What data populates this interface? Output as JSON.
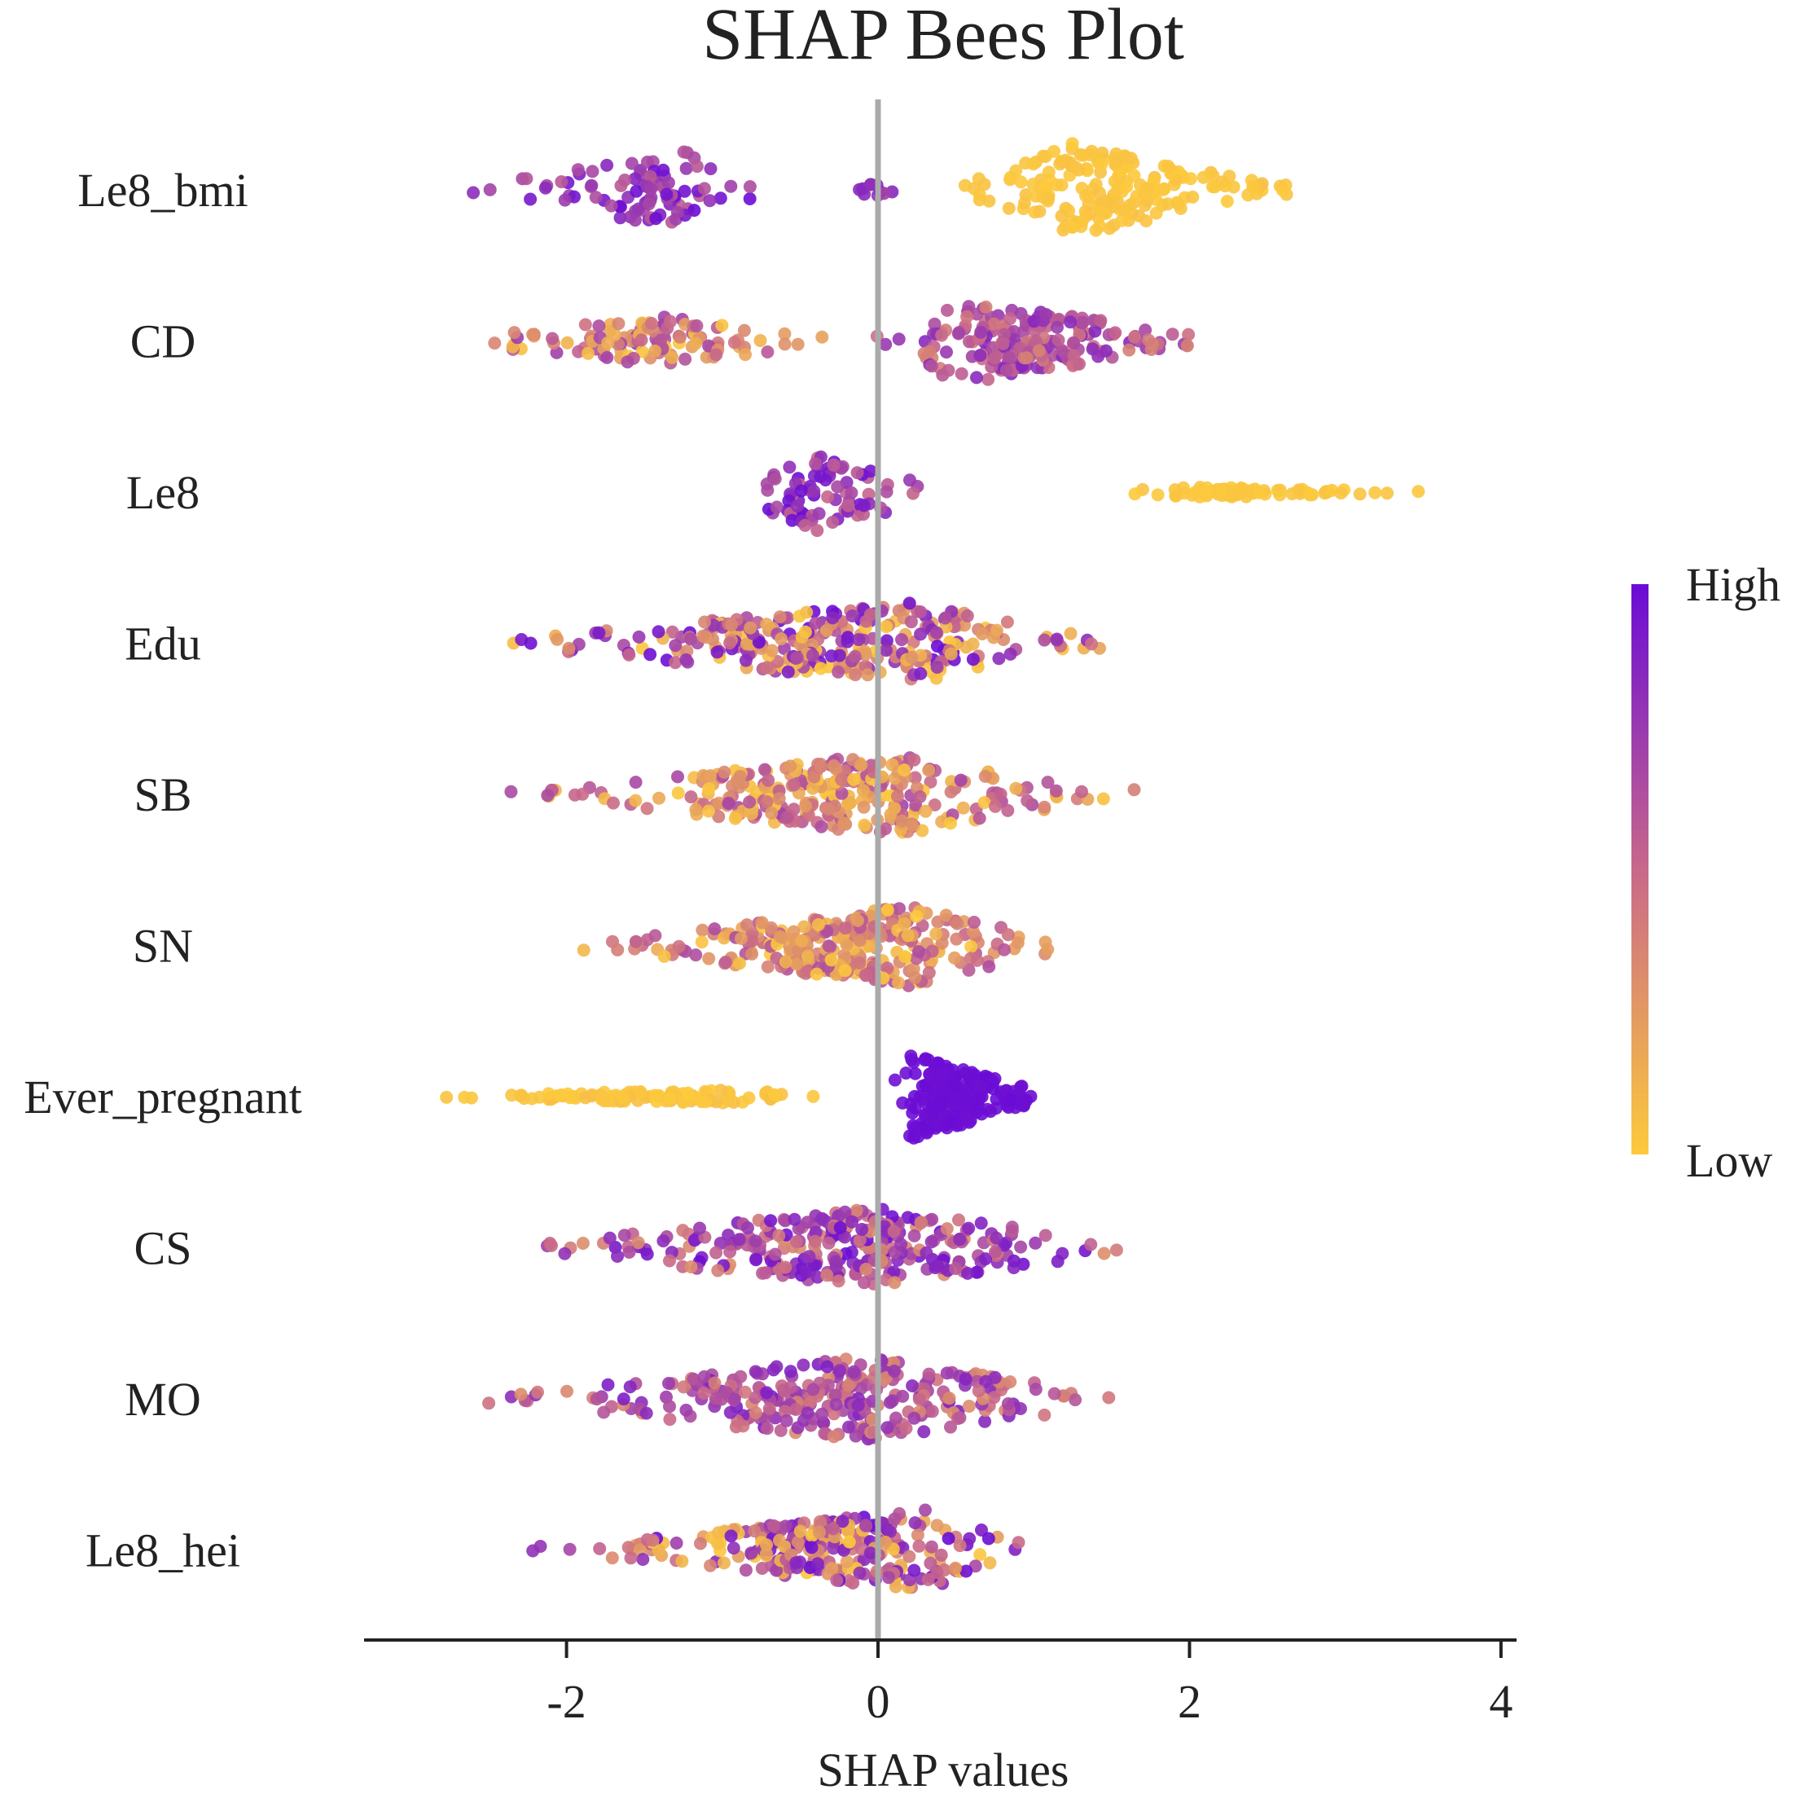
{
  "chart_data": {
    "type": "scatter",
    "subtype": "shap-beeswarm",
    "title": "SHAP Bees Plot",
    "xlabel": "SHAP values",
    "ylabel": "",
    "xlim": [
      -3.3,
      4.1
    ],
    "xticks": [
      -2,
      0,
      2,
      4
    ],
    "xtick_labels": [
      "-2",
      "0",
      "2",
      "4"
    ],
    "zero_line": 0,
    "colorbar": {
      "high_label": "High",
      "low_label": "Low",
      "high_color": "#6a0bd6",
      "mid_color": "#c8688a",
      "low_color": "#fdca3c"
    },
    "features": [
      {
        "name": "Le8_bmi",
        "clusters": [
          {
            "range": [
              -2.7,
              -0.6
            ],
            "peak": -1.25,
            "n": 90,
            "amp": 0.32,
            "color": [
              0.55,
              1.0
            ]
          },
          {
            "range": [
              -0.4,
              0.3
            ],
            "peak": 0.0,
            "n": 10,
            "amp": 0.05,
            "color": [
              0.7,
              0.95
            ]
          },
          {
            "range": [
              0.45,
              2.7
            ],
            "peak": 1.25,
            "n": 190,
            "amp": 0.38,
            "color": [
              0.0,
              0.05
            ]
          }
        ]
      },
      {
        "name": "CD",
        "clusters": [
          {
            "range": [
              -2.9,
              -0.1
            ],
            "peak": -1.4,
            "n": 110,
            "amp": 0.2,
            "color": [
              0.02,
              0.75
            ]
          },
          {
            "range": [
              -0.1,
              2.25
            ],
            "peak": 0.5,
            "n": 210,
            "amp": 0.36,
            "color": [
              0.35,
              0.85
            ]
          }
        ]
      },
      {
        "name": "Le8",
        "clusters": [
          {
            "range": [
              -1.05,
              0.55
            ],
            "peak": -0.4,
            "n": 80,
            "amp": 0.32,
            "color": [
              0.5,
              1.0
            ]
          },
          {
            "range": [
              1.1,
              3.8
            ],
            "peak": 2.1,
            "n": 75,
            "amp": 0.045,
            "color": [
              0.0,
              0.04
            ]
          }
        ]
      },
      {
        "name": "Edu",
        "clusters": [
          {
            "range": [
              -2.7,
              1.6
            ],
            "peak": 0.2,
            "n": 300,
            "amp": 0.33,
            "color": [
              0.0,
              1.0
            ]
          }
        ]
      },
      {
        "name": "SB",
        "clusters": [
          {
            "range": [
              -2.4,
              1.7
            ],
            "peak": 0.1,
            "n": 300,
            "amp": 0.34,
            "color": [
              0.0,
              0.7
            ]
          }
        ]
      },
      {
        "name": "SN",
        "clusters": [
          {
            "range": [
              -2.0,
              1.35
            ],
            "peak": 0.2,
            "n": 300,
            "amp": 0.33,
            "color": [
              0.0,
              0.65
            ]
          }
        ]
      },
      {
        "name": "Ever_pregnant",
        "clusters": [
          {
            "range": [
              -3.0,
              -0.15
            ],
            "peak": -0.9,
            "n": 110,
            "amp": 0.06,
            "color": [
              0.0,
              0.06
            ]
          },
          {
            "range": [
              0.05,
              1.15
            ],
            "peak": 0.2,
            "n": 210,
            "amp": 0.36,
            "color": [
              0.97,
              1.0
            ]
          }
        ]
      },
      {
        "name": "CS",
        "clusters": [
          {
            "range": [
              -2.4,
              1.85
            ],
            "peak": 0.0,
            "n": 300,
            "amp": 0.33,
            "color": [
              0.3,
              1.0
            ]
          }
        ]
      },
      {
        "name": "MO",
        "clusters": [
          {
            "range": [
              -2.6,
              1.85
            ],
            "peak": -0.1,
            "n": 300,
            "amp": 0.34,
            "color": [
              0.3,
              0.9
            ]
          }
        ]
      },
      {
        "name": "Le8_hei",
        "clusters": [
          {
            "range": [
              -2.25,
              1.05
            ],
            "peak": 0.3,
            "n": 280,
            "amp": 0.33,
            "color": [
              0.0,
              1.0
            ]
          }
        ]
      }
    ]
  }
}
